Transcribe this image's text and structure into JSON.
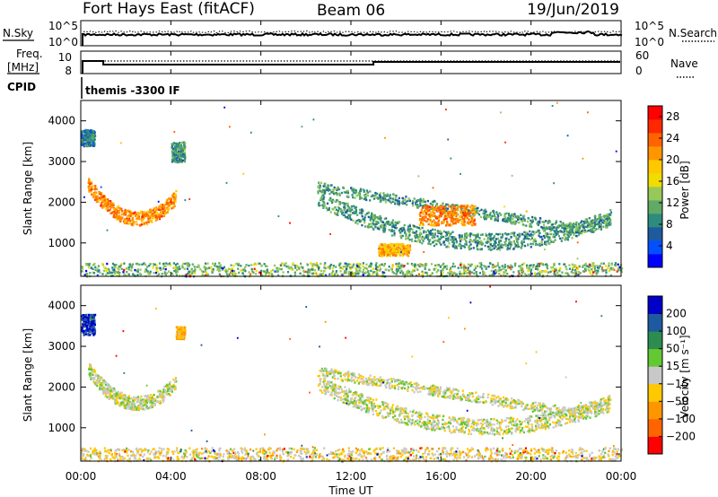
{
  "header": {
    "radar": "Fort Hays East (fitACF)",
    "beam": "Beam 06",
    "date": "19/Jun/2019"
  },
  "strips": {
    "nsky": {
      "label": "N.Sky",
      "ticks": [
        "10^5",
        "10^0"
      ]
    },
    "nsearch": {
      "label": "N.Search",
      "ticks": [
        "10^5",
        "10^0"
      ],
      "legend_line": "dotted"
    },
    "freq": {
      "label_top": "Freq.",
      "label_bottom": "[MHz]",
      "ticks": [
        "10",
        "8"
      ]
    },
    "nave": {
      "label": "Nave",
      "ticks": [
        "60",
        "0"
      ],
      "legend_line": "dotted"
    },
    "cpid": {
      "label": "CPID",
      "value": "themis -3300 IF"
    }
  },
  "xaxis": {
    "label": "Time UT",
    "ticks": [
      "00:00",
      "04:00",
      "08:00",
      "12:00",
      "16:00",
      "20:00",
      "00:00"
    ]
  },
  "panels": {
    "power": {
      "ylabel": "Slant Range [km]",
      "yticks": [
        "1000",
        "2000",
        "3000",
        "4000"
      ],
      "colorbar_label": "Power [dB]",
      "colorbar_ticks": [
        "4",
        "8",
        "12",
        "16",
        "20",
        "24",
        "28"
      ]
    },
    "velocity": {
      "ylabel": "Slant Range [km]",
      "yticks": [
        "1000",
        "2000",
        "3000",
        "4000"
      ],
      "colorbar_label": "Velocity [m s⁻¹]",
      "colorbar_ticks": [
        "200",
        "100",
        "50",
        "15",
        "−15",
        "−50",
        "−100",
        "−200"
      ]
    }
  },
  "chart_data": [
    {
      "type": "heatmap",
      "name_of_quantity": "Power [dB]",
      "x_range_hours": [
        0,
        24
      ],
      "y_range_km": [
        180,
        4500
      ],
      "value_range": [
        0,
        30
      ],
      "colormap": [
        "#0000ff",
        "#0050ff",
        "#1e5aa0",
        "#2d8c7d",
        "#5faa64",
        "#96c85a",
        "#f0dc00",
        "#ffc800",
        "#ff9600",
        "#ff6400",
        "#ff2800",
        "#ff0000"
      ],
      "features": [
        {
          "t": [
            0.0,
            0.6
          ],
          "r": [
            3400,
            3800
          ],
          "v": 8
        },
        {
          "t": [
            0.3,
            4.2
          ],
          "r": [
            1450,
            2500
          ],
          "v": 22,
          "shape": "arc",
          "peak_t": 2.5
        },
        {
          "t": [
            4.0,
            4.6
          ],
          "r": [
            3000,
            3500
          ],
          "v": 10
        },
        {
          "t": [
            10.5,
            23.5
          ],
          "r": [
            700,
            2500
          ],
          "v": 10,
          "shape": "arc2"
        },
        {
          "t": [
            15.0,
            17.5
          ],
          "r": [
            1450,
            1950
          ],
          "v": 22
        },
        {
          "t": [
            13.2,
            14.6
          ],
          "r": [
            700,
            1000
          ],
          "v": 20
        },
        {
          "t": [
            0.0,
            24.0
          ],
          "r": [
            200,
            550
          ],
          "v": 12,
          "shape": "ground"
        }
      ]
    },
    {
      "type": "heatmap",
      "name_of_quantity": "Velocity [m s⁻¹]",
      "x_range_hours": [
        0,
        24
      ],
      "y_range_km": [
        180,
        4500
      ],
      "value_range": [
        -250,
        250
      ],
      "colormap": [
        "#ff0000",
        "#ff6400",
        "#ff9600",
        "#ffc800",
        "#c8c8c8",
        "#64c832",
        "#2d8c50",
        "#1e5aa0",
        "#0000c8"
      ],
      "features": [
        {
          "t": [
            0.0,
            0.6
          ],
          "r": [
            3300,
            3800
          ],
          "v": 200
        },
        {
          "t": [
            0.3,
            4.2
          ],
          "r": [
            1450,
            2500
          ],
          "v": 0,
          "shape": "arc",
          "peak_t": 2.5
        },
        {
          "t": [
            4.2,
            4.6
          ],
          "r": [
            3200,
            3500
          ],
          "v": -80
        },
        {
          "t": [
            10.5,
            23.5
          ],
          "r": [
            700,
            2500
          ],
          "v": 0,
          "shape": "arc2"
        },
        {
          "t": [
            0.0,
            24.0
          ],
          "r": [
            200,
            550
          ],
          "v": -30,
          "shape": "ground"
        }
      ]
    }
  ]
}
